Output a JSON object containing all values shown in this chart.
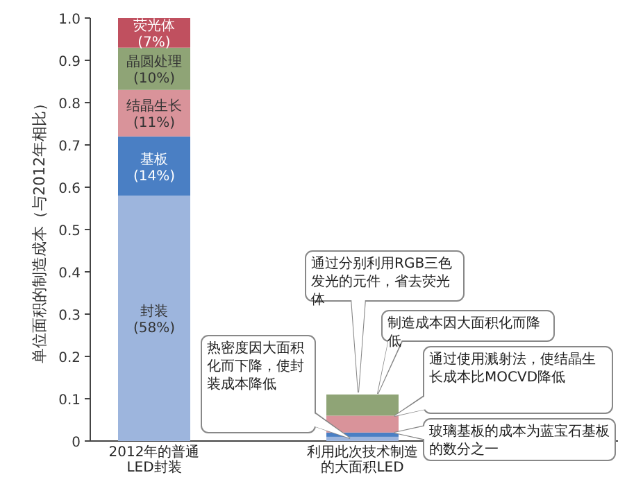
{
  "chart_data": {
    "type": "bar",
    "stacked": true,
    "ylabel": "单位面积的制造成本（与2012年相比）",
    "categories": [
      "2012年的普通LED封装",
      "利用此次技术制造的大面积LED"
    ],
    "series": [
      {
        "name": "封装",
        "color": "#9db5dd",
        "values": [
          0.58,
          0.01
        ],
        "value_labels": [
          "(58%)",
          null
        ]
      },
      {
        "name": "基板",
        "color": "#4a7fc4",
        "values": [
          0.14,
          0.01
        ],
        "value_labels": [
          "(14%)",
          null
        ]
      },
      {
        "name": "结晶生长",
        "color": "#d9939a",
        "values": [
          0.11,
          0.04
        ],
        "value_labels": [
          "(11%)",
          null
        ]
      },
      {
        "name": "晶圆处理",
        "color": "#8fa476",
        "values": [
          0.1,
          0.05
        ],
        "value_labels": [
          "(10%)",
          null
        ]
      },
      {
        "name": "荧光体",
        "color": "#c0505f",
        "values": [
          0.07,
          0
        ],
        "value_labels": [
          "(7%)",
          null
        ]
      }
    ],
    "ylim": [
      0,
      1
    ],
    "yticks": [
      0,
      0.1,
      0.2,
      0.3,
      0.4,
      0.5,
      0.6,
      0.7,
      0.8,
      0.9,
      {
        "value": 1,
        "label": "1.0"
      }
    ],
    "grid": false,
    "legend": false,
    "annotations": [
      "热密度因大面积化而下降，使封装成本降低",
      "通过分别利用RGB三色发光的元件，省去荧光体",
      "制造成本因大面积化而降低",
      "通过使用溅射法，使结晶生长成本比MOCVD降低",
      "玻璃基板的成本为蓝宝石基板的数分之一"
    ]
  }
}
